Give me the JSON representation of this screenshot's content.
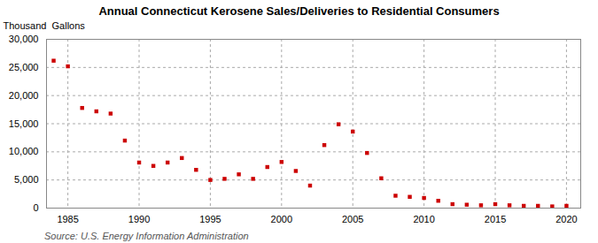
{
  "chart_data": {
    "type": "scatter",
    "title": "Annual Connecticut Kerosene Sales/Deliveries to Residential Consumers",
    "ylabel": "Thousand  Gallons",
    "source": "Source: U.S. Energy Information Administration",
    "x": [
      1984,
      1985,
      1986,
      1987,
      1988,
      1989,
      1990,
      1991,
      1992,
      1993,
      1994,
      1995,
      1996,
      1997,
      1998,
      1999,
      2000,
      2001,
      2002,
      2003,
      2004,
      2005,
      2006,
      2007,
      2008,
      2009,
      2010,
      2011,
      2012,
      2013,
      2014,
      2015,
      2016,
      2017,
      2018,
      2019,
      2020
    ],
    "values": [
      26200,
      25200,
      17800,
      17200,
      16800,
      12000,
      8100,
      7500,
      8100,
      8900,
      6800,
      5000,
      5200,
      6000,
      5200,
      7300,
      8200,
      6600,
      4000,
      11200,
      14900,
      13600,
      9800,
      5300,
      2200,
      2000,
      1800,
      1300,
      700,
      600,
      500,
      700,
      500,
      400,
      400,
      300,
      400
    ],
    "color": "#cc0000",
    "marker": "square",
    "xlim": [
      1983.5,
      2021
    ],
    "xticks": [
      1985,
      1990,
      1995,
      2000,
      2005,
      2010,
      2015,
      2020
    ],
    "ylim": [
      0,
      30000
    ],
    "yticks": [
      0,
      {
        "value": 5000,
        "label": "5,000"
      },
      {
        "value": 10000,
        "label": "10,000"
      },
      {
        "value": 15000,
        "label": "15,000"
      },
      {
        "value": 20000,
        "label": "20,000"
      },
      {
        "value": 25000,
        "label": "25,000"
      },
      {
        "value": 30000,
        "label": "30,000"
      }
    ],
    "grid": true
  }
}
